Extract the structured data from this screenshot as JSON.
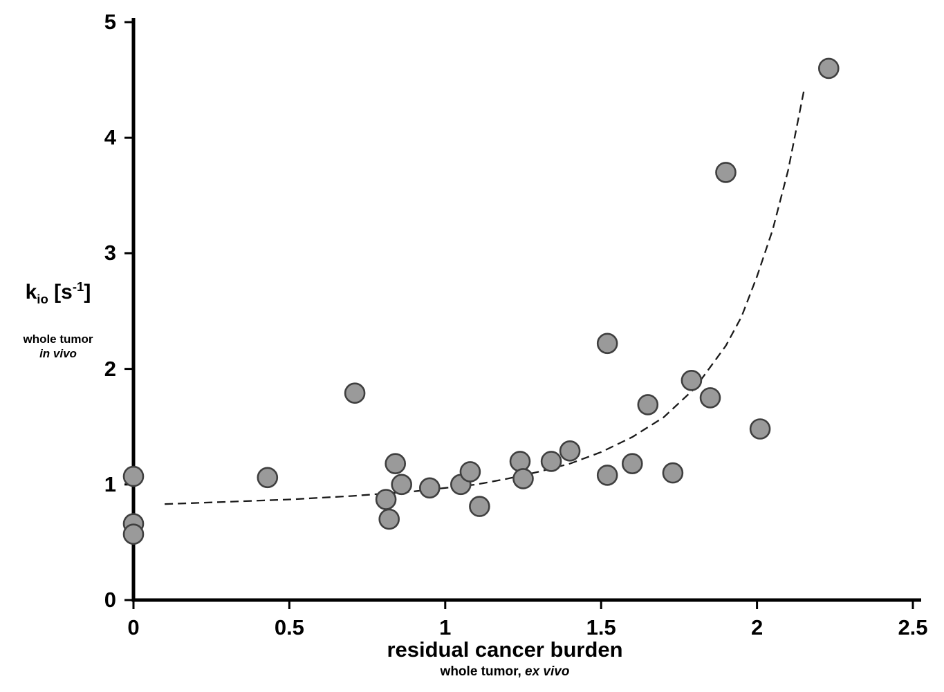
{
  "figure_background": "#ffffff",
  "y_axis": {
    "label_k": "k",
    "label_sub": "io",
    "label_mid": " [s",
    "label_sup": "-1",
    "label_close": "]",
    "subtitle_line1": "whole tumor",
    "subtitle_line2": "in vivo"
  },
  "x_axis": {
    "title": "residual cancer burden",
    "subtitle_plain": "whole tumor, ",
    "subtitle_italic": "ex vivo"
  },
  "chart_data": {
    "type": "scatter",
    "title": "",
    "xlabel": "residual cancer burden",
    "xlabel_subtitle": "whole tumor, ex vivo",
    "ylabel": "k_io [s^-1]",
    "ylabel_subtitle_line1": "whole tumor",
    "ylabel_subtitle_line2": "in vivo",
    "xlim": [
      0,
      2.5
    ],
    "ylim": [
      0,
      5
    ],
    "grid": false,
    "legend": false,
    "x_tick_labels": [
      "0",
      "0.5",
      "1",
      "1.5",
      "2",
      "2.5"
    ],
    "x_tick_values": [
      0,
      0.5,
      1,
      1.5,
      2,
      2.5
    ],
    "y_tick_labels": [
      "0",
      "1",
      "2",
      "3",
      "4",
      "5"
    ],
    "y_tick_values": [
      0,
      1,
      2,
      3,
      4,
      5
    ],
    "axis_color": "#000000",
    "marker": {
      "fill": "#9a9a9a",
      "stroke": "#3f3f3f",
      "stroke_width": 2.6,
      "radius_px": 14
    },
    "points": [
      [
        0,
        1.07
      ],
      [
        0,
        0.66
      ],
      [
        0,
        0.57
      ],
      [
        0.43,
        1.06
      ],
      [
        0.71,
        1.79
      ],
      [
        0.81,
        0.87
      ],
      [
        0.82,
        0.7
      ],
      [
        0.84,
        1.18
      ],
      [
        0.86,
        1.0
      ],
      [
        0.95,
        0.97
      ],
      [
        1.05,
        1.0
      ],
      [
        1.08,
        1.11
      ],
      [
        1.11,
        0.81
      ],
      [
        1.24,
        1.2
      ],
      [
        1.25,
        1.05
      ],
      [
        1.34,
        1.2
      ],
      [
        1.4,
        1.29
      ],
      [
        1.52,
        2.22
      ],
      [
        1.52,
        1.08
      ],
      [
        1.6,
        1.18
      ],
      [
        1.65,
        1.69
      ],
      [
        1.73,
        1.1
      ],
      [
        1.79,
        1.9
      ],
      [
        1.85,
        1.75
      ],
      [
        1.9,
        3.7
      ],
      [
        2.01,
        1.48
      ],
      [
        2.23,
        4.6
      ]
    ],
    "trend": {
      "style": "dashed",
      "color": "#1a1a1a",
      "stroke_width": 2.3,
      "dash": "12 7",
      "points": [
        [
          0.1,
          0.83
        ],
        [
          0.3,
          0.85
        ],
        [
          0.5,
          0.87
        ],
        [
          0.7,
          0.9
        ],
        [
          0.9,
          0.94
        ],
        [
          1.0,
          0.97
        ],
        [
          1.1,
          1.0
        ],
        [
          1.2,
          1.05
        ],
        [
          1.3,
          1.11
        ],
        [
          1.4,
          1.18
        ],
        [
          1.5,
          1.28
        ],
        [
          1.6,
          1.41
        ],
        [
          1.7,
          1.58
        ],
        [
          1.8,
          1.83
        ],
        [
          1.9,
          2.2
        ],
        [
          1.95,
          2.45
        ],
        [
          2.0,
          2.8
        ],
        [
          2.05,
          3.2
        ],
        [
          2.1,
          3.72
        ],
        [
          2.15,
          4.4
        ]
      ]
    }
  }
}
